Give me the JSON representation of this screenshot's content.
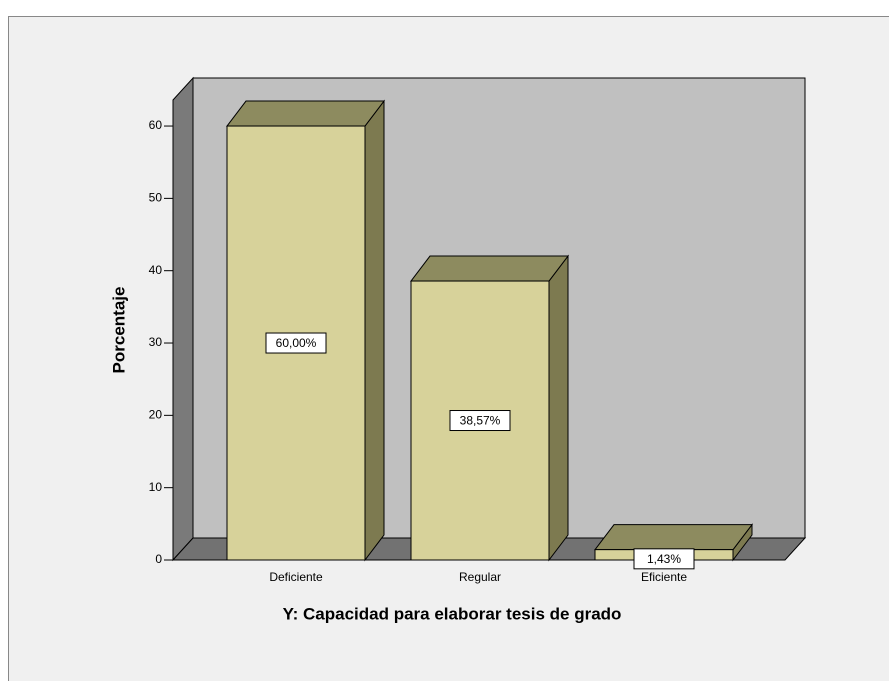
{
  "chart_data": {
    "type": "bar3d",
    "x_label": "Y: Capacidad para elaborar tesis de grado",
    "y_label": "Porcentaje",
    "categories": [
      "Deficiente",
      "Regular",
      "Eficiente"
    ],
    "values": [
      60,
      38.57,
      1.43
    ],
    "value_labels": [
      "60,00%",
      "38,57%",
      "1,43%"
    ],
    "color": "#d7d29a",
    "ylim": [
      0,
      63.6
    ],
    "yticks": [
      0,
      10,
      20,
      30,
      40,
      50,
      60
    ]
  }
}
